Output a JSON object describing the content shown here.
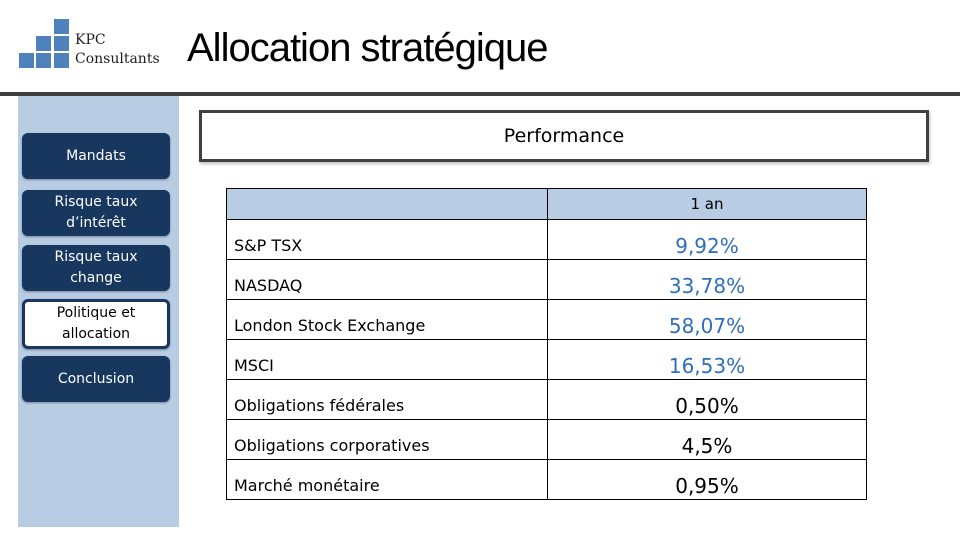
{
  "logo": {
    "line1": "KPC",
    "line2": "Consultants"
  },
  "page_title": "Allocation stratégique",
  "nav": {
    "section_label": "Mandats",
    "items": [
      {
        "label_line1": "Risque taux",
        "label_line2": "d’intérêt",
        "active": false
      },
      {
        "label_line1": "Risque taux",
        "label_line2": "change",
        "active": false
      },
      {
        "label_line1": "Politique et",
        "label_line2": "allocation",
        "active": true
      },
      {
        "label_line1": "Conclusion",
        "label_line2": "",
        "active": false
      }
    ]
  },
  "performance_box": {
    "title": "Performance"
  },
  "table": {
    "headers": [
      "",
      "1 an"
    ],
    "rows": [
      {
        "name": "S&P TSX",
        "value": "9,92%",
        "highlight": true
      },
      {
        "name": "NASDAQ",
        "value": "33,78%",
        "highlight": true
      },
      {
        "name": "London Stock Exchange",
        "value": "58,07%",
        "highlight": true
      },
      {
        "name": "MSCI",
        "value": "16,53%",
        "highlight": true
      },
      {
        "name": "Obligations fédérales",
        "value": "0,50%",
        "highlight": false
      },
      {
        "name": "Obligations corporatives",
        "value": "4,5%",
        "highlight": false
      },
      {
        "name": "Marché monétaire",
        "value": "0,95%",
        "highlight": false
      }
    ]
  },
  "colors": {
    "sidebar": "#b8cce4",
    "nav_button": "#17375e",
    "logo_squares": "#4f81bd",
    "highlight_value": "#2f6eba",
    "table_header": "#b8cce4"
  }
}
